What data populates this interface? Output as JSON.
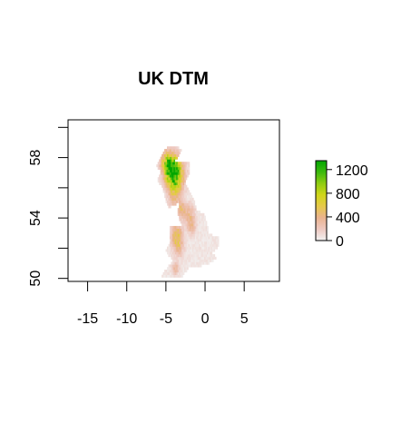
{
  "chart_data": {
    "type": "heatmap",
    "title": "UK DTM",
    "xlabel": "",
    "ylabel": "",
    "xlim": [
      -17.5,
      9.5
    ],
    "ylim": [
      49.8,
      60.5
    ],
    "x_ticks": [
      -15,
      -10,
      -5,
      0,
      5
    ],
    "x_tick_labels": [
      "-15",
      "-10",
      "-5",
      "0",
      "5"
    ],
    "y_ticks": [
      50,
      52,
      54,
      56,
      58,
      60
    ],
    "y_tick_labels": [
      "50",
      "54",
      "58"
    ],
    "y_labeled_ticks": [
      50,
      54,
      58
    ],
    "legend": {
      "position": "right",
      "min": 0,
      "max": 1350,
      "ticks": [
        0,
        400,
        800,
        1200
      ],
      "tick_labels": [
        "0",
        "400",
        "800",
        "1200"
      ],
      "colors": [
        "#F2F2F2",
        "#EEC9C1",
        "#EAB38F",
        "#E6C94A",
        "#D0D619",
        "#8FCC12",
        "#3CB90E",
        "#00A600"
      ]
    },
    "grid": false
  }
}
